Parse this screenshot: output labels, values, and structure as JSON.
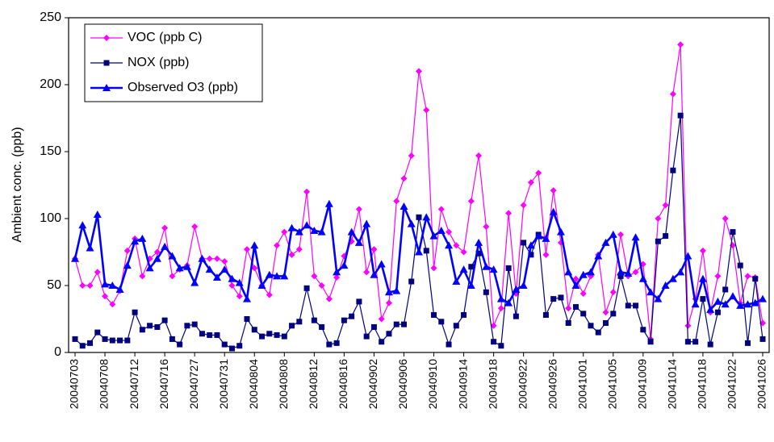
{
  "chart_data": {
    "type": "line",
    "y_label": "Ambient conc. (ppb)",
    "ylim": [
      0,
      250
    ],
    "yticks": [
      0,
      50,
      100,
      150,
      200,
      250
    ],
    "grid": false,
    "legend": "upper left",
    "categories": [
      "20040703",
      null,
      null,
      null,
      "20040708",
      null,
      null,
      null,
      "20040712",
      null,
      null,
      null,
      "20040716",
      null,
      null,
      null,
      "20040727",
      null,
      null,
      null,
      "20040731",
      null,
      null,
      null,
      "20040804",
      null,
      null,
      null,
      "20040808",
      null,
      null,
      null,
      "20040812",
      null,
      null,
      null,
      "20040816",
      null,
      null,
      null,
      "20040902",
      null,
      null,
      null,
      "20040906",
      null,
      null,
      null,
      "20040910",
      null,
      null,
      null,
      "20040914",
      null,
      null,
      null,
      "20040918",
      null,
      null,
      null,
      "20040922",
      null,
      null,
      null,
      "20040926",
      null,
      null,
      null,
      "20041001",
      null,
      null,
      null,
      "20041005",
      null,
      null,
      null,
      "20041009",
      null,
      null,
      null,
      "20041014",
      null,
      null,
      null,
      "20041018",
      null,
      null,
      null,
      "20041022",
      null,
      null,
      null,
      "20041026"
    ],
    "series": [
      {
        "name": "VOC (ppb C)",
        "color": "#ff00ff",
        "marker": "diamond",
        "values": [
          70,
          50,
          50,
          60,
          42,
          36,
          46,
          76,
          85,
          57,
          70,
          75,
          93,
          57,
          62,
          65,
          94,
          70,
          70,
          70,
          68,
          50,
          42,
          77,
          63,
          50,
          43,
          80,
          90,
          73,
          77,
          120,
          57,
          50,
          40,
          56,
          72,
          83,
          107,
          60,
          77,
          25,
          37,
          113,
          130,
          147,
          210,
          181,
          63,
          107,
          90,
          80,
          75,
          113,
          147,
          94,
          20,
          33,
          104,
          44,
          110,
          127,
          134,
          73,
          121,
          82,
          33,
          55,
          44,
          57,
          73,
          30,
          45,
          88,
          57,
          60,
          66,
          10,
          100,
          110,
          193,
          230,
          20,
          40,
          76,
          30,
          57,
          100,
          80,
          37,
          57,
          56,
          22
        ]
      },
      {
        "name": "NOX (ppb)",
        "color": "#000080",
        "marker": "square",
        "values": [
          10,
          5,
          7,
          15,
          10,
          9,
          9,
          9,
          30,
          17,
          20,
          19,
          24,
          10,
          6,
          20,
          21,
          14,
          13,
          13,
          6,
          3,
          5,
          25,
          17,
          12,
          14,
          13,
          12,
          20,
          23,
          48,
          24,
          19,
          6,
          7,
          24,
          27,
          38,
          12,
          19,
          8,
          14,
          21,
          21,
          53,
          101,
          76,
          28,
          23,
          6,
          20,
          28,
          64,
          74,
          45,
          8,
          5,
          63,
          27,
          82,
          73,
          88,
          28,
          40,
          41,
          22,
          34,
          29,
          20,
          15,
          22,
          29,
          57,
          35,
          35,
          17,
          8,
          83,
          87,
          136,
          177,
          8,
          8,
          40,
          6,
          30,
          47,
          90,
          65,
          7,
          55,
          10
        ]
      },
      {
        "name": "Observed O3 (ppb)",
        "color": "#0000ff",
        "marker": "triangle",
        "values": [
          70,
          95,
          78,
          103,
          51,
          50,
          47,
          65,
          83,
          85,
          63,
          70,
          79,
          72,
          63,
          64,
          52,
          70,
          62,
          56,
          62,
          55,
          52,
          40,
          80,
          50,
          58,
          57,
          57,
          93,
          90,
          95,
          91,
          90,
          111,
          60,
          65,
          90,
          82,
          96,
          58,
          66,
          45,
          46,
          109,
          96,
          75,
          101,
          87,
          91,
          80,
          53,
          62,
          50,
          82,
          64,
          62,
          40,
          37,
          47,
          50,
          80,
          87,
          85,
          105,
          90,
          60,
          50,
          58,
          60,
          72,
          82,
          88,
          60,
          59,
          86,
          55,
          45,
          40,
          50,
          55,
          60,
          72,
          36,
          55,
          32,
          38,
          36,
          42,
          35,
          36,
          37,
          40
        ]
      }
    ]
  }
}
